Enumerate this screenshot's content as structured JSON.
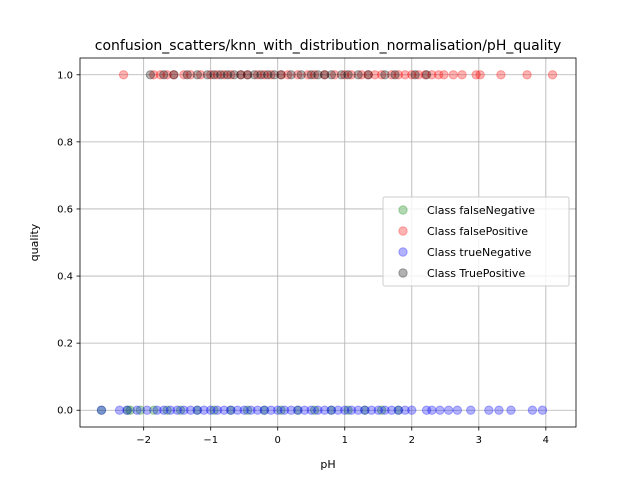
{
  "chart_data": {
    "type": "scatter",
    "title": "confusion_scatters/knn_with_distribution_normalisation/pH_quality",
    "xlabel": "pH",
    "ylabel": "quality",
    "xlim": [
      -2.95,
      4.45
    ],
    "ylim": [
      -0.05,
      1.05
    ],
    "x_ticks": [
      -2,
      -1,
      0,
      1,
      2,
      3,
      4
    ],
    "y_ticks": [
      0.0,
      0.2,
      0.4,
      0.6,
      0.8,
      1.0
    ],
    "x_tick_labels": [
      "−2",
      "−1",
      "0",
      "1",
      "2",
      "3",
      "4"
    ],
    "y_tick_labels": [
      "0.0",
      "0.2",
      "0.4",
      "0.6",
      "0.8",
      "1.0"
    ],
    "grid": true,
    "legend_position": "center-right",
    "series": [
      {
        "name": "Class falseNegative",
        "color": "#008000",
        "x": [
          -2.63,
          -2.24,
          -2.2,
          -2.05,
          -1.85,
          -1.65,
          -1.45,
          -1.2,
          -0.95,
          -0.7,
          -0.45,
          -0.2,
          0.05,
          0.3,
          0.55,
          0.8,
          1.05,
          1.3,
          1.55,
          1.8
        ],
        "y": [
          0,
          0,
          0,
          0,
          0,
          0,
          0,
          0,
          0,
          0,
          0,
          0,
          0,
          0,
          0,
          0,
          0,
          0,
          0,
          0
        ]
      },
      {
        "name": "Class falsePositive",
        "color": "#ff0000",
        "x": [
          -2.3,
          -1.85,
          -1.75,
          -1.65,
          -1.55,
          -1.4,
          -1.3,
          -1.15,
          -1.0,
          -0.9,
          -0.8,
          -0.7,
          -0.55,
          -0.45,
          -0.3,
          -0.2,
          -0.1,
          0.05,
          0.15,
          0.3,
          0.45,
          0.55,
          0.7,
          0.85,
          1.0,
          1.1,
          1.25,
          1.35,
          1.45,
          1.55,
          1.7,
          1.8,
          1.9,
          2.0,
          2.1,
          2.2,
          2.3,
          2.4,
          2.48,
          2.62,
          2.75,
          2.96,
          3.02,
          3.33,
          3.72,
          4.1
        ],
        "y": [
          1,
          1,
          1,
          1,
          1,
          1,
          1,
          1,
          1,
          1,
          1,
          1,
          1,
          1,
          1,
          1,
          1,
          1,
          1,
          1,
          1,
          1,
          1,
          1,
          1,
          1,
          1,
          1,
          1,
          1,
          1,
          1,
          1,
          1,
          1,
          1,
          1,
          1,
          1,
          1,
          1,
          1,
          1,
          1,
          1,
          1
        ]
      },
      {
        "name": "Class trueNegative",
        "color": "#0000ff",
        "x": [
          -2.63,
          -2.36,
          -2.25,
          -2.1,
          -1.95,
          -1.8,
          -1.7,
          -1.6,
          -1.5,
          -1.4,
          -1.3,
          -1.2,
          -1.1,
          -1.0,
          -0.9,
          -0.8,
          -0.7,
          -0.6,
          -0.5,
          -0.4,
          -0.3,
          -0.2,
          -0.1,
          0.0,
          0.1,
          0.2,
          0.3,
          0.4,
          0.5,
          0.6,
          0.7,
          0.8,
          0.9,
          1.0,
          1.1,
          1.2,
          1.3,
          1.4,
          1.5,
          1.6,
          1.7,
          1.8,
          1.9,
          2.0,
          2.22,
          2.3,
          2.42,
          2.55,
          2.68,
          2.88,
          3.15,
          3.3,
          3.48,
          3.8,
          3.95
        ],
        "y": [
          0,
          0,
          0,
          0,
          0,
          0,
          0,
          0,
          0,
          0,
          0,
          0,
          0,
          0,
          0,
          0,
          0,
          0,
          0,
          0,
          0,
          0,
          0,
          0,
          0,
          0,
          0,
          0,
          0,
          0,
          0,
          0,
          0,
          0,
          0,
          0,
          0,
          0,
          0,
          0,
          0,
          0,
          0,
          0,
          0,
          0,
          0,
          0,
          0,
          0,
          0,
          0,
          0,
          0,
          0
        ]
      },
      {
        "name": "Class TruePositive",
        "color": "#000000",
        "x": [
          -1.9,
          -1.7,
          -1.55,
          -1.35,
          -1.2,
          -1.05,
          -0.95,
          -0.85,
          -0.75,
          -0.65,
          -0.55,
          -0.45,
          -0.35,
          -0.25,
          -0.15,
          -0.05,
          0.05,
          0.2,
          0.35,
          0.5,
          0.6,
          0.7,
          0.8,
          0.95,
          1.05,
          1.2,
          1.35,
          1.6,
          1.75,
          2.05,
          2.22
        ],
        "y": [
          1,
          1,
          1,
          1,
          1,
          1,
          1,
          1,
          1,
          1,
          1,
          1,
          1,
          1,
          1,
          1,
          1,
          1,
          1,
          1,
          1,
          1,
          1,
          1,
          1,
          1,
          1,
          1,
          1,
          1,
          1
        ]
      }
    ]
  }
}
